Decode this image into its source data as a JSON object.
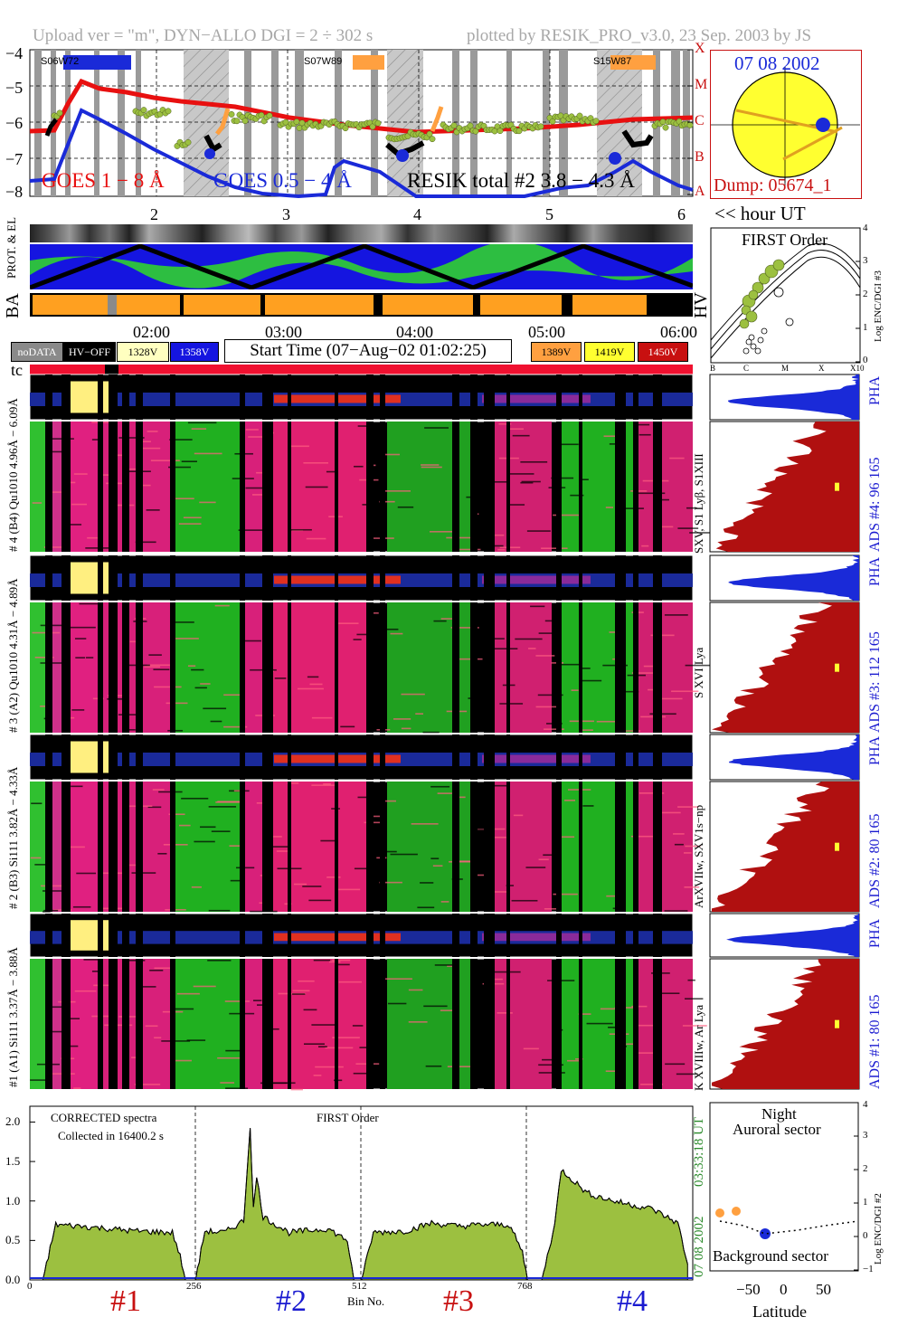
{
  "header": {
    "left": "Upload ver = \"m\", DYN−ALLO DGI =   2 ÷ 302 s",
    "right": "plotted by RESIK_PRO_v3.0, 23 Sep. 2003 by JS"
  },
  "goes": {
    "yticks": [
      "−4",
      "−5",
      "−6",
      "−7",
      "−8"
    ],
    "class_labels": [
      "X",
      "M",
      "C",
      "B",
      "A"
    ],
    "legend_goes_long": "GOES 1 − 8 Å",
    "legend_goes_short": "GOES 0.5 − 4 Å",
    "legend_resik": "RESIK total #2  3.8 − 4.3 Å",
    "regions": [
      "S06W72",
      "S07W89",
      "S15W87"
    ],
    "hour_ticks": [
      "2",
      "3",
      "4",
      "5",
      "6"
    ],
    "hour_axis_label": "<< hour UT"
  },
  "sun": {
    "date": "07 08 2002",
    "dump": "Dump: 05674_1"
  },
  "status": {
    "prot_label": "PROT. & EL",
    "ba_label": "BA",
    "hv_label": "HV",
    "time_ticks": [
      "02:00",
      "03:00",
      "04:00",
      "05:00",
      "06:00"
    ],
    "legend": [
      {
        "label": "noDATA",
        "color": "#8a8a8a",
        "text_color": "#ffffff"
      },
      {
        "label": "HV−OFF",
        "color": "#000000",
        "text_color": "#ffffff"
      },
      {
        "label": "1328V",
        "color": "#ffffc0",
        "text_color": "#000000"
      },
      {
        "label": "1358V",
        "color": "#1515e0",
        "text_color": "#ffffff"
      },
      {
        "label": "1389V",
        "color": "#ffa040",
        "text_color": "#000000"
      },
      {
        "label": "1419V",
        "color": "#ffff30",
        "text_color": "#000000"
      },
      {
        "label": "1450V",
        "color": "#c81010",
        "text_color": "#ffffff"
      }
    ],
    "start_time": "Start Time (07−Aug−02 01:02:25)",
    "tc_label": "tc"
  },
  "first_order_top": {
    "title": "FIRST Order",
    "xticks": [
      "B",
      "C",
      "M",
      "X",
      "X10"
    ],
    "yticks": [
      "0",
      "1",
      "2",
      "3",
      "4"
    ],
    "ylabel": "Log ENC/DGI #3"
  },
  "channels": [
    {
      "pha_label": "# 4 (B4) Qu1010 4.96Å − 6.09Å",
      "side_label": "SXV, S1 Lyβ, S1XIII",
      "ads_label": "ADS #4:   96 165",
      "pha": "PHA"
    },
    {
      "pha_label": "# 3 (A2) Qu1010  4.31Å − 4.89Å",
      "side_label": "S XVI Lya",
      "ads_label": "ADS #3:   112 165",
      "pha": "PHA"
    },
    {
      "pha_label": "# 2 (B3) Si111  3.82Å − 4.33Å",
      "side_label": "ArXVIIw, SXV1s−np",
      "ads_label": "ADS #2:   80 165",
      "pha": "PHA"
    },
    {
      "pha_label": "#1 (A1) Si111  3.37Å − 3.88Å",
      "side_label": "K XVIIIw, Ar Lya",
      "ads_label": "ADS #1:   80 165",
      "pha": "PHA"
    }
  ],
  "spectrum": {
    "note1": "CORRECTED spectra",
    "note2": "Collected in 16400.2 s",
    "title": "FIRST Order",
    "yticks": [
      "0.0",
      "0.5",
      "1.0",
      "1.5",
      "2.0"
    ],
    "xticks": [
      "0",
      "256",
      "512",
      "768"
    ],
    "xlabel": "Bin No.",
    "side_time": "03:33:18 UT",
    "side_date": "07 08 2002",
    "channel_marks": [
      {
        "label": "#1",
        "color": "#c81010"
      },
      {
        "label": "#2",
        "color": "#1a1ad0"
      },
      {
        "label": "#3",
        "color": "#c81010"
      },
      {
        "label": "#4",
        "color": "#1a1ad0"
      }
    ]
  },
  "latitude": {
    "title1": "Night",
    "title2": "Auroral sector",
    "bottom": "Background sector",
    "xticks": [
      "−50",
      "0",
      "50"
    ],
    "xlabel": "Latitude",
    "yticks": [
      "−1",
      "0",
      "1",
      "2",
      "3",
      "4"
    ],
    "ylabel": "Log ENC/DGI #2"
  },
  "chart_data": {
    "type": "line",
    "title": "FIRST Order",
    "xlabel": "Bin No.",
    "ylabel": "",
    "xlim": [
      0,
      1023
    ],
    "ylim": [
      0,
      2.2
    ],
    "series": [
      {
        "name": "",
        "x": [
          0,
          20,
          40,
          80,
          120,
          160,
          220,
          232,
          240,
          256,
          270,
          300,
          330,
          340,
          345,
          350,
          360,
          400,
          460,
          490,
          500,
          512,
          530,
          580,
          620,
          660,
          700,
          740,
          760,
          768,
          790,
          810,
          820,
          860,
          900,
          960,
          1000,
          1015
        ],
        "y": [
          0.0,
          0.0,
          0.7,
          0.68,
          0.65,
          0.62,
          0.6,
          0.3,
          0.0,
          0.0,
          0.62,
          0.6,
          0.75,
          1.95,
          0.9,
          1.3,
          0.8,
          0.6,
          0.65,
          0.5,
          0.0,
          0.0,
          0.6,
          0.62,
          0.72,
          0.68,
          0.7,
          0.7,
          0.35,
          0.0,
          0.0,
          0.7,
          1.4,
          1.1,
          1.0,
          0.9,
          0.72,
          0.2
        ]
      }
    ]
  }
}
